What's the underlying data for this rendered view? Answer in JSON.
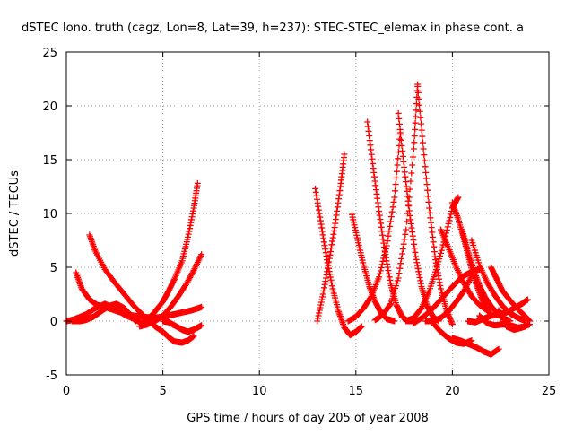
{
  "chart_data": {
    "type": "scatter",
    "title": "dSTEC Iono. truth (cagz, Lon=8, Lat=39, h=237): STEC-STEC_elemax in phase cont. a",
    "xlabel": "GPS time / hours of day 205 of year 2008",
    "ylabel": "dSTEC  / TECUs",
    "xlim": [
      0,
      25
    ],
    "ylim": [
      -5,
      25
    ],
    "x_ticks": [
      0,
      5,
      10,
      15,
      20,
      25
    ],
    "y_ticks": [
      -5,
      0,
      5,
      10,
      15,
      20,
      25
    ],
    "grid": true,
    "legend": "none",
    "marker": "plus",
    "color": "#ff0000",
    "series": [
      {
        "x": [
          0.0,
          0.3,
          0.6,
          1.0,
          1.5,
          2.0,
          2.5,
          3.0,
          3.5,
          4.0
        ],
        "y": [
          0.0,
          0.1,
          0.3,
          0.6,
          1.2,
          1.6,
          1.2,
          0.6,
          0.2,
          -0.3
        ]
      },
      {
        "x": [
          0.5,
          0.8,
          1.2,
          1.6,
          2.0,
          2.5,
          3.0,
          3.5,
          4.0,
          4.5,
          5.0,
          5.5,
          6.0,
          6.5,
          7.0
        ],
        "y": [
          4.5,
          3.0,
          2.0,
          1.5,
          1.3,
          1.0,
          0.7,
          0.5,
          0.4,
          0.3,
          0.4,
          0.6,
          0.8,
          1.0,
          1.3
        ]
      },
      {
        "x": [
          1.2,
          1.5,
          2.0,
          2.5,
          3.0,
          3.5,
          4.0,
          4.3
        ],
        "y": [
          8.0,
          6.5,
          4.8,
          3.6,
          2.5,
          1.4,
          0.5,
          -0.2
        ]
      },
      {
        "x": [
          0.3,
          0.7,
          1.0,
          1.4,
          1.8,
          2.2,
          2.6,
          3.0,
          3.3,
          3.6
        ],
        "y": [
          0.0,
          0.0,
          0.1,
          0.4,
          0.9,
          1.4,
          1.6,
          1.2,
          0.6,
          0.0
        ]
      },
      {
        "x": [
          4.0,
          4.3,
          4.6,
          5.0,
          5.3,
          5.6,
          6.0,
          6.3,
          6.6,
          6.8
        ],
        "y": [
          0.0,
          0.3,
          0.9,
          1.8,
          2.8,
          3.9,
          5.6,
          7.8,
          10.5,
          12.8
        ]
      },
      {
        "x": [
          3.8,
          4.2,
          4.6,
          5.0,
          5.4,
          5.8,
          6.2,
          6.6,
          7.0
        ],
        "y": [
          -0.5,
          -0.3,
          0.0,
          0.5,
          1.3,
          2.3,
          3.4,
          4.7,
          6.2
        ]
      },
      {
        "x": [
          4.3,
          4.6,
          5.0,
          5.3,
          5.6,
          6.0,
          6.3,
          6.6
        ],
        "y": [
          0.0,
          -0.5,
          -1.0,
          -1.5,
          -1.9,
          -2.0,
          -1.8,
          -1.4
        ]
      },
      {
        "x": [
          5.0,
          5.3,
          5.6,
          6.0,
          6.3,
          6.6,
          7.0
        ],
        "y": [
          0.0,
          -0.1,
          -0.4,
          -0.8,
          -1.0,
          -0.8,
          -0.4
        ]
      },
      {
        "x": [
          12.9,
          13.2,
          13.5,
          13.8,
          14.1,
          14.4,
          14.7,
          15.0,
          15.3
        ],
        "y": [
          12.3,
          9.0,
          5.7,
          3.0,
          0.9,
          -0.6,
          -1.3,
          -1.0,
          -0.5
        ]
      },
      {
        "x": [
          13.0,
          13.3,
          13.6,
          13.9,
          14.2,
          14.4
        ],
        "y": [
          0.0,
          2.5,
          5.5,
          8.7,
          12.5,
          15.5
        ]
      },
      {
        "x": [
          14.8,
          15.1,
          15.4,
          15.7,
          16.0,
          16.3,
          16.6,
          17.0
        ],
        "y": [
          9.9,
          7.5,
          5.2,
          3.2,
          1.8,
          0.8,
          0.2,
          0.0
        ]
      },
      {
        "x": [
          14.6,
          15.0,
          15.4,
          15.8,
          16.2,
          16.6,
          17.0,
          17.3
        ],
        "y": [
          0.0,
          0.4,
          1.2,
          2.3,
          4.1,
          7.0,
          11.5,
          17.5
        ]
      },
      {
        "x": [
          15.6,
          15.9,
          16.2,
          16.5,
          16.8,
          17.1,
          17.4,
          17.7,
          18.0
        ],
        "y": [
          18.5,
          14.2,
          10.2,
          6.5,
          3.5,
          1.5,
          0.4,
          0.0,
          0.0
        ]
      },
      {
        "x": [
          16.0,
          16.4,
          16.8,
          17.2,
          17.6,
          18.0,
          18.2
        ],
        "y": [
          0.1,
          0.6,
          1.6,
          4.0,
          8.5,
          16.0,
          22.0
        ]
      },
      {
        "x": [
          17.2,
          17.5,
          17.8,
          18.1,
          18.4,
          18.7,
          19.0,
          19.3
        ],
        "y": [
          19.3,
          14.3,
          9.8,
          6.0,
          3.2,
          1.4,
          0.4,
          0.0
        ]
      },
      {
        "x": [
          17.6,
          18.0,
          18.4,
          18.8,
          19.2,
          19.6,
          20.0,
          20.3
        ],
        "y": [
          0.0,
          0.3,
          1.2,
          2.8,
          5.0,
          7.6,
          10.5,
          11.5
        ]
      },
      {
        "x": [
          18.2,
          18.5,
          18.8,
          19.1,
          19.4,
          19.7,
          20.0
        ],
        "y": [
          21.8,
          16.0,
          10.5,
          6.0,
          3.0,
          1.0,
          -0.3
        ]
      },
      {
        "x": [
          19.0,
          19.4,
          19.8,
          20.2,
          20.6,
          21.0
        ],
        "y": [
          -0.2,
          -1.0,
          -1.6,
          -2.0,
          -2.1,
          -1.8
        ]
      },
      {
        "x": [
          20.0,
          20.4,
          20.8,
          21.2,
          21.6,
          22.0,
          22.4
        ],
        "y": [
          -1.6,
          -1.8,
          -2.1,
          -2.4,
          -2.8,
          -3.1,
          -2.6
        ]
      },
      {
        "x": [
          20.0,
          20.3,
          20.6,
          20.9,
          21.2,
          21.5,
          21.8,
          22.0
        ],
        "y": [
          11.0,
          9.5,
          7.6,
          5.5,
          3.6,
          2.2,
          1.1,
          0.6
        ]
      },
      {
        "x": [
          19.4,
          19.8,
          20.2,
          20.6,
          21.0,
          21.4,
          21.8
        ],
        "y": [
          8.5,
          6.8,
          5.0,
          3.5,
          2.3,
          1.5,
          1.0
        ]
      },
      {
        "x": [
          20.5,
          20.8,
          21.1,
          21.4,
          21.7,
          22.0,
          22.3,
          22.6,
          23.0
        ],
        "y": [
          8.5,
          6.5,
          4.8,
          3.3,
          2.2,
          1.4,
          0.8,
          0.3,
          0.0
        ]
      },
      {
        "x": [
          21.0,
          21.4,
          21.8,
          22.2,
          22.6,
          23.0,
          23.4,
          23.8
        ],
        "y": [
          7.5,
          5.2,
          3.6,
          2.4,
          1.4,
          0.7,
          0.3,
          0.0
        ]
      },
      {
        "x": [
          22.0,
          22.3,
          22.6,
          23.0,
          23.4,
          23.8,
          24.0
        ],
        "y": [
          5.0,
          3.9,
          2.8,
          1.9,
          1.1,
          0.4,
          0.0
        ]
      },
      {
        "x": [
          21.4,
          21.8,
          22.2,
          22.6,
          23.0,
          23.4,
          23.8
        ],
        "y": [
          0.5,
          -0.2,
          -0.4,
          -0.3,
          -0.4,
          -0.6,
          -0.5
        ]
      },
      {
        "x": [
          22.4,
          22.8,
          23.2,
          23.6,
          24.0
        ],
        "y": [
          1.0,
          -0.5,
          -0.8,
          -0.6,
          -0.3
        ]
      },
      {
        "x": [
          18.0,
          18.5,
          19.0,
          19.5,
          20.0,
          20.5,
          21.0,
          21.4
        ],
        "y": [
          -0.2,
          0.4,
          1.2,
          2.2,
          3.2,
          4.1,
          4.6,
          4.8
        ]
      },
      {
        "x": [
          20.8,
          21.2,
          21.6,
          22.0,
          22.4,
          22.8,
          23.2,
          23.6,
          23.9
        ],
        "y": [
          0.0,
          -0.1,
          0.2,
          0.5,
          0.6,
          0.8,
          1.2,
          1.6,
          2.0
        ]
      },
      {
        "x": [
          18.6,
          19.0,
          19.4,
          19.8,
          20.2,
          20.6,
          21.0
        ],
        "y": [
          0.0,
          0.0,
          0.3,
          0.9,
          1.8,
          2.8,
          4.2
        ]
      }
    ]
  }
}
